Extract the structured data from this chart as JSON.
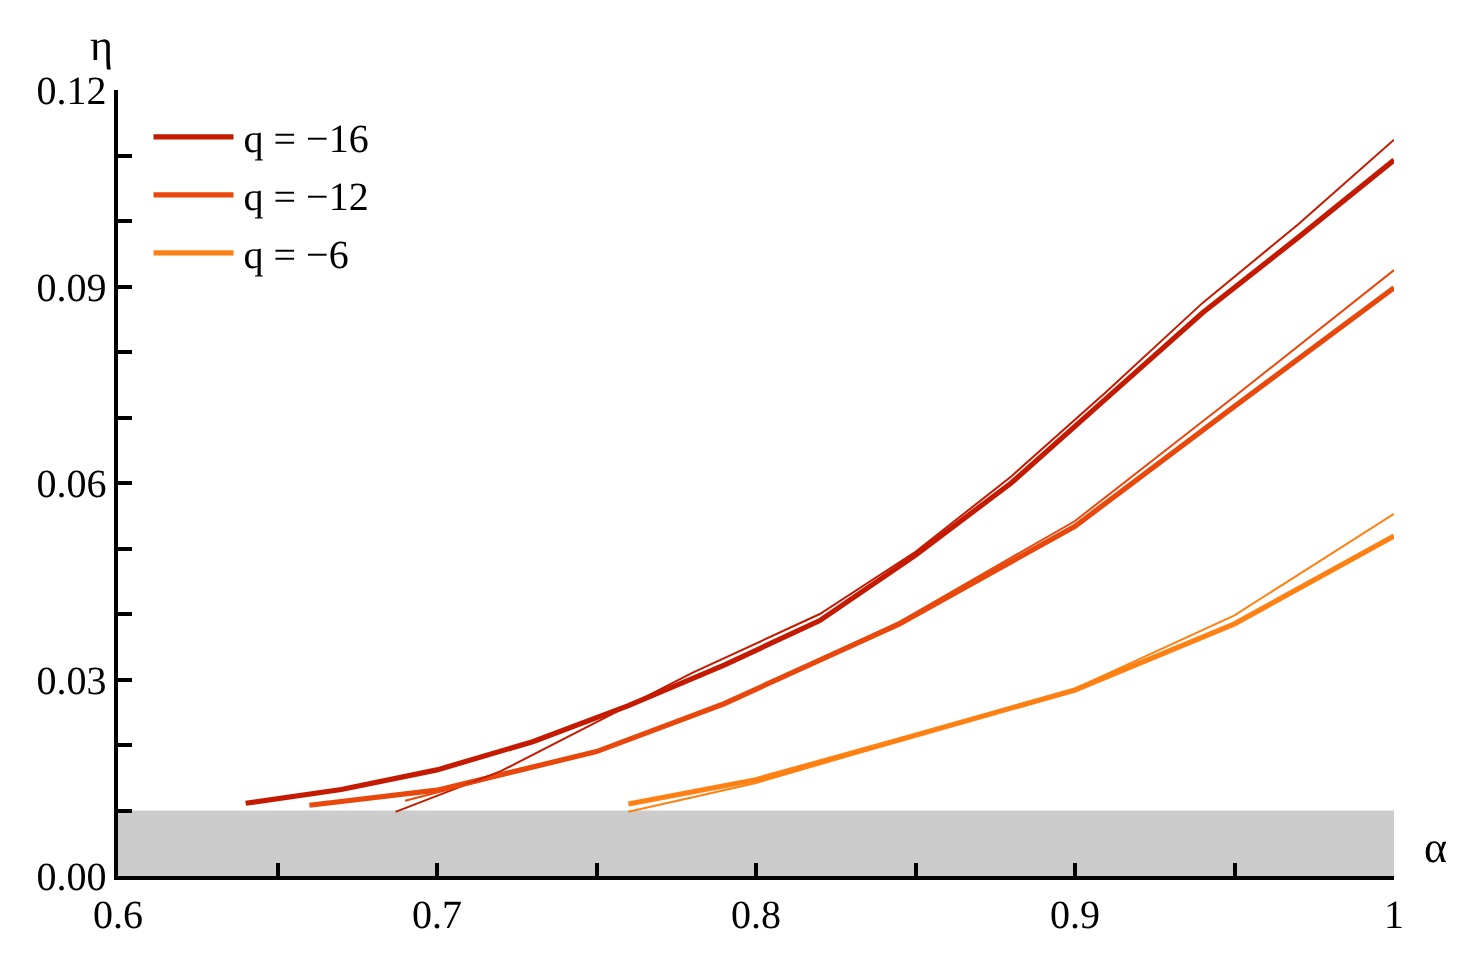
{
  "chart_data": {
    "type": "line",
    "xlabel": "α",
    "ylabel": "η",
    "xlim": [
      0.6,
      1.0
    ],
    "ylim": [
      0,
      0.12
    ],
    "xticks": [
      0.6,
      {
        "value": 0.65,
        "label": null
      },
      0.7,
      {
        "value": 0.75,
        "label": null
      },
      0.8,
      {
        "value": 0.85,
        "label": null
      },
      0.9,
      {
        "value": 0.95,
        "label": null
      },
      {
        "value": 1.0,
        "label": "1"
      }
    ],
    "yticks": [
      {
        "value": 0,
        "label": "0.00"
      },
      {
        "value": 0.01,
        "label": null
      },
      {
        "value": 0.02,
        "label": null
      },
      0.03,
      {
        "value": 0.04,
        "label": null
      },
      {
        "value": 0.05,
        "label": null
      },
      0.06,
      {
        "value": 0.07,
        "label": null
      },
      {
        "value": 0.08,
        "label": null
      },
      0.09,
      {
        "value": 0.1,
        "label": null
      },
      {
        "value": 0.11,
        "label": null
      },
      0.12
    ],
    "grid": false,
    "legend": "top left",
    "marker": "none",
    "line_style": "solid",
    "bands": [
      {
        "axis": "y",
        "from": 0,
        "to": 0.01,
        "color": "#cccccc"
      }
    ],
    "series": [
      {
        "name": "q = −16",
        "color": "#c41a00",
        "x": [
          0.64,
          0.67,
          0.7,
          0.73,
          0.76,
          0.79,
          0.82,
          0.85,
          0.88,
          0.91,
          0.94,
          0.97,
          1.0
        ],
        "values": [
          0.0111,
          0.0132,
          0.0162,
          0.0205,
          0.026,
          0.0322,
          0.039,
          0.049,
          0.06,
          0.073,
          0.086,
          0.0975,
          0.1093
        ]
      },
      {
        "name": "q = −12",
        "color": "#e8480c",
        "x": [
          0.66,
          0.7,
          0.75,
          0.79,
          0.845,
          0.9,
          0.95,
          1.0
        ],
        "values": [
          0.0108,
          0.0131,
          0.019,
          0.0263,
          0.0385,
          0.0534,
          0.0717,
          0.0898
        ]
      },
      {
        "name": "q = −6",
        "color": "#ff8013",
        "x": [
          0.76,
          0.8,
          0.845,
          0.9,
          0.95,
          1.0
        ],
        "values": [
          0.011,
          0.0147,
          0.0208,
          0.0284,
          0.0385,
          0.0519
        ]
      },
      {
        "color": "#c41a00",
        "x": [
          0.687,
          0.72,
          0.75,
          0.78,
          0.82,
          0.85,
          0.88,
          0.91,
          0.94,
          0.97,
          1.0
        ],
        "values": [
          0.0098,
          0.016,
          0.0235,
          0.031,
          0.04,
          0.0495,
          0.061,
          0.074,
          0.0875,
          0.0995,
          0.1124
        ]
      },
      {
        "color": "#e8480c",
        "x": [
          0.69,
          0.75,
          0.79,
          0.845,
          0.9,
          0.95,
          1.0
        ],
        "values": [
          0.0115,
          0.019,
          0.0263,
          0.0388,
          0.0542,
          0.0732,
          0.0925
        ]
      },
      {
        "color": "#ff8013",
        "x": [
          0.76,
          0.8,
          0.845,
          0.9,
          0.95,
          1.0
        ],
        "values": [
          0.0098,
          0.0142,
          0.0206,
          0.0286,
          0.0398,
          0.0553
        ]
      }
    ]
  }
}
